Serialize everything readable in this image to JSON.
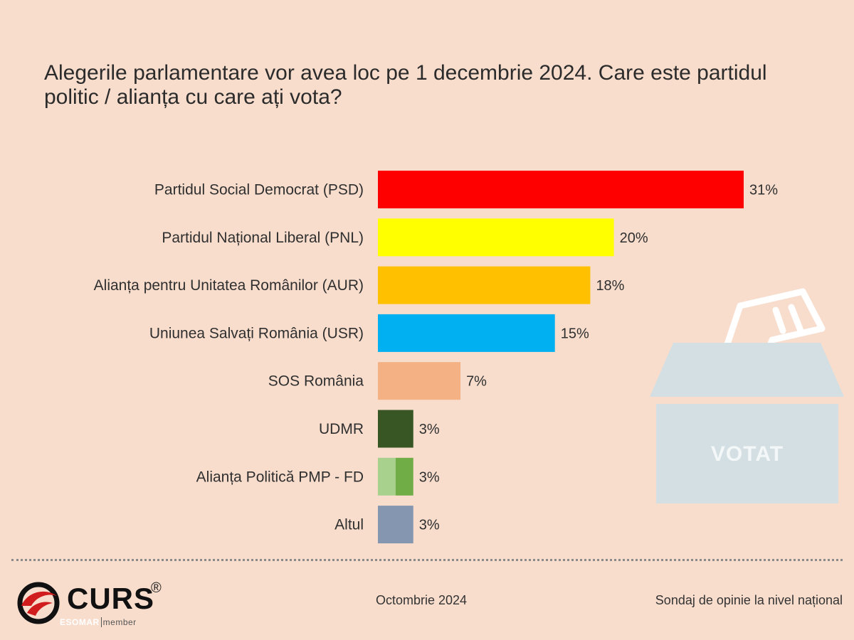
{
  "title": "Alegerile parlamentare vor avea loc pe 1 decembrie 2024. Care este partidul politic / alianța cu care ați vota?",
  "chart_data": {
    "type": "bar",
    "orientation": "horizontal",
    "categories": [
      "Partidul Social Democrat (PSD)",
      "Partidul Național Liberal (PNL)",
      "Alianța pentru Unitatea Românilor (AUR)",
      "Uniunea Salvați România (USR)",
      "SOS România",
      "UDMR",
      "Alianța Politică PMP - FD",
      "Altul"
    ],
    "values": [
      31,
      20,
      18,
      15,
      7,
      3,
      3,
      3
    ],
    "value_labels": [
      "31%",
      "20%",
      "18%",
      "15%",
      "7%",
      "3%",
      "3%",
      "3%"
    ],
    "colors": [
      "#ff0000",
      "#ffff00",
      "#ffc000",
      "#00b0f0",
      "#f4b183",
      "#375623",
      "#70ad47",
      "#8496b0"
    ],
    "secondary_colors": [
      null,
      null,
      null,
      null,
      null,
      null,
      "#a9d18e",
      null
    ],
    "xlim": [
      0,
      31
    ],
    "grid": false,
    "legend": "none"
  },
  "ballot": {
    "label": "VOTAT"
  },
  "footer": {
    "brand": "CURS",
    "registered": "®",
    "esomar": "ESOMAR",
    "member": "member",
    "date": "Octombrie 2024",
    "source": "Sondaj de opinie la nivel național"
  }
}
